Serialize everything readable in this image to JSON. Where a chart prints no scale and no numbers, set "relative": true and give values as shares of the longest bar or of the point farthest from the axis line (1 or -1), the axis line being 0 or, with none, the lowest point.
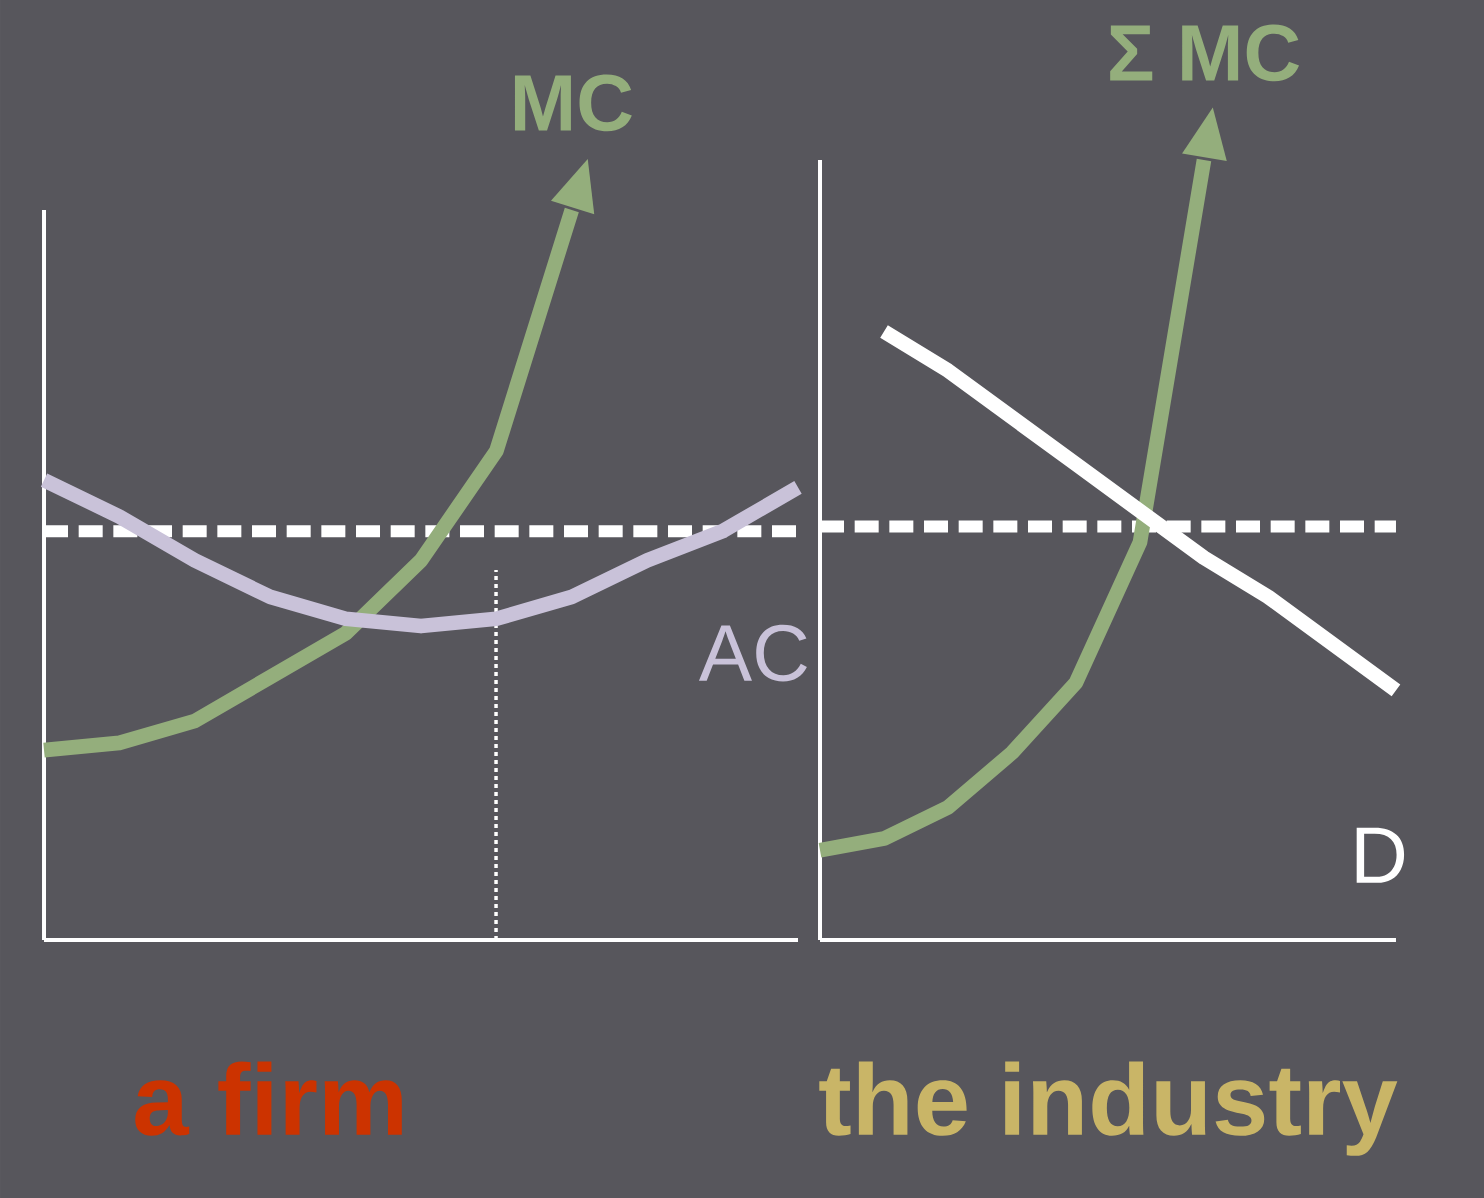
{
  "chart_data": [
    {
      "type": "line",
      "title": "a firm",
      "relative": true,
      "categories": [
        null,
        null,
        null,
        null,
        null,
        null,
        null,
        null,
        null,
        null,
        null
      ],
      "series": [
        {
          "name": "MC",
          "color": "#94ae7c",
          "values": [
            0.26,
            0.27,
            0.3,
            0.36,
            0.42,
            0.52,
            0.67,
            1.0,
            null,
            null,
            null
          ]
        },
        {
          "name": "AC",
          "color": "#c9c2d9",
          "values": [
            0.63,
            0.58,
            0.52,
            0.47,
            0.44,
            0.43,
            0.44,
            0.47,
            0.52,
            0.56,
            0.62
          ]
        }
      ],
      "ref_lines": [
        {
          "axis": "y",
          "value": 0.56,
          "color": "#ffffff",
          "line_style": "dashed"
        }
      ]
    },
    {
      "type": "line",
      "title": "the industry",
      "relative": true,
      "categories": [
        null,
        null,
        null,
        null,
        null,
        null,
        null,
        null,
        null,
        null
      ],
      "series": [
        {
          "name": "Σ MC",
          "color": "#94ae7c",
          "values": [
            0.115,
            0.13,
            0.17,
            0.24,
            0.33,
            0.51,
            1.0,
            null,
            null,
            null
          ]
        },
        {
          "name": "D",
          "color": "#ffffff",
          "type": "line",
          "line_style": "solid",
          "values": [
            null,
            0.78,
            0.73,
            0.67,
            0.61,
            0.55,
            0.49,
            0.44,
            0.38,
            0.32
          ]
        }
      ],
      "ref_lines": [
        {
          "axis": "y",
          "value": 0.53,
          "color": "#ffffff",
          "line_style": "dashed"
        }
      ]
    }
  ]
}
